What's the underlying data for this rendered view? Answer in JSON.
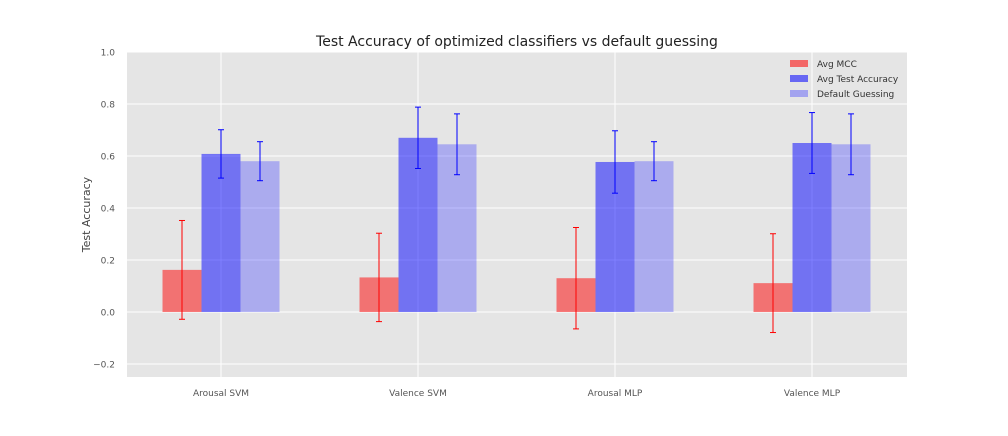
{
  "chart_data": {
    "type": "bar",
    "title": "Test Accuracy of optimized classifiers vs default guessing",
    "xlabel": "",
    "ylabel": "Test Accuracy",
    "ylim": [
      -0.25,
      1.0
    ],
    "yticks": [
      -0.2,
      0.0,
      0.2,
      0.4,
      0.6,
      0.8,
      1.0
    ],
    "ytick_labels": [
      "−0.2",
      "0.0",
      "0.2",
      "0.4",
      "0.6",
      "0.8",
      "1.0"
    ],
    "categories": [
      "Arousal SVM",
      "Valence SVM",
      "Arousal MLP",
      "Valence MLP"
    ],
    "grid": true,
    "legend_position": "top-right",
    "series": [
      {
        "name": "Avg MCC",
        "color": "#ff0000",
        "bar_opacity": 0.5,
        "error_color": "#ff0000",
        "values": [
          0.162,
          0.133,
          0.13,
          0.111
        ],
        "errors": [
          0.19,
          0.17,
          0.195,
          0.19
        ]
      },
      {
        "name": "Avg Test Accuracy",
        "color": "#0000ff",
        "bar_opacity": 0.5,
        "error_color": "#0000ff",
        "values": [
          0.608,
          0.67,
          0.577,
          0.65
        ],
        "errors": [
          0.093,
          0.118,
          0.12,
          0.117
        ]
      },
      {
        "name": "Default Guessing",
        "color": "#4040ff",
        "bar_opacity": 0.35,
        "error_color": "#0000ff",
        "values": [
          0.58,
          0.645,
          0.58,
          0.645
        ],
        "errors": [
          0.075,
          0.117,
          0.075,
          0.117
        ]
      }
    ]
  }
}
